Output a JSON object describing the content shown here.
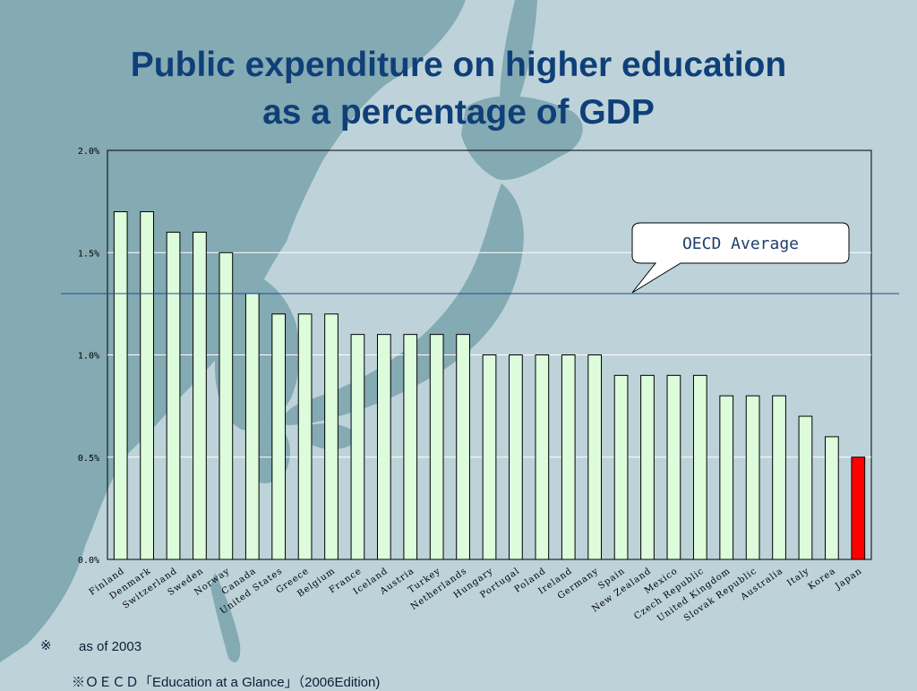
{
  "slide": {
    "title_line1": "Public expenditure on higher education",
    "title_line2": "as a percentage of GDP",
    "note_mark": "※",
    "note_text": "as of 2003",
    "source_text": "※ＯＥＣＤ「Education at a Glance」（2006Edition)"
  },
  "colors": {
    "background": "#bdd3d9",
    "land": "#84aab3",
    "bar": "#ddfcdc",
    "highlight_bar": "#ff0000",
    "average_line": "#1f4e8a",
    "title": "#0f3f78"
  },
  "chart_data": {
    "type": "bar",
    "title": "",
    "xlabel": "",
    "ylabel": "",
    "ylim": [
      0,
      0.02
    ],
    "yticks": [
      0,
      0.005,
      0.01,
      0.015,
      0.02
    ],
    "ytick_labels": [
      "0.0%",
      "0.5%",
      "1.0%",
      "1.5%",
      "2.0%"
    ],
    "grid": true,
    "categories": [
      "Finland",
      "Denmark",
      "Switzerland",
      "Sweden",
      "Norway",
      "Canada",
      "United States",
      "Greece",
      "Belgium",
      "France",
      "Iceland",
      "Austria",
      "Turkey",
      "Netherlands",
      "Hungary",
      "Portugal",
      "Poland",
      "Ireland",
      "Germany",
      "Spain",
      "New Zealand",
      "Mexico",
      "Czech Republic",
      "United Kingdom",
      "Slovak Republic",
      "Australia",
      "Italy",
      "Korea",
      "Japan"
    ],
    "values": [
      0.017,
      0.017,
      0.016,
      0.016,
      0.015,
      0.013,
      0.012,
      0.012,
      0.012,
      0.011,
      0.011,
      0.011,
      0.011,
      0.011,
      0.01,
      0.01,
      0.01,
      0.01,
      0.01,
      0.009,
      0.009,
      0.009,
      0.009,
      0.008,
      0.008,
      0.008,
      0.007,
      0.006,
      0.005
    ],
    "highlight": "Japan",
    "reference_line": {
      "label": "OECD Average",
      "value": 0.013
    }
  }
}
